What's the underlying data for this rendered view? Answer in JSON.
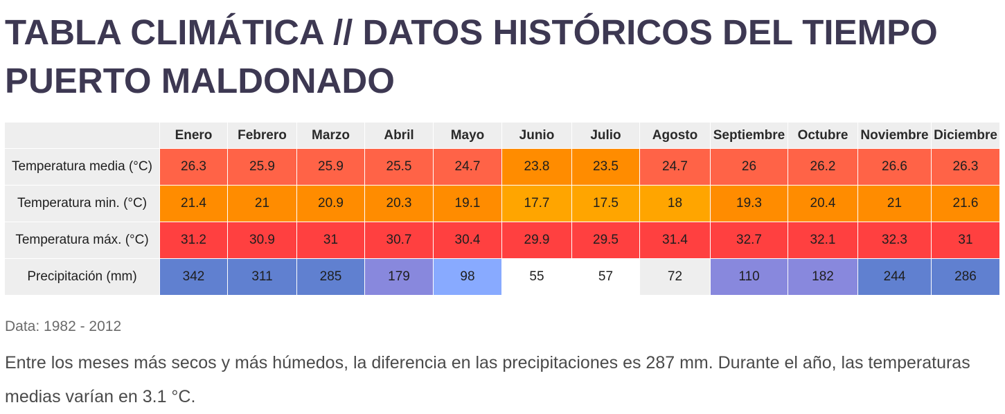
{
  "title": {
    "line1": "TABLA CLIMÁTICA // DATOS HISTÓRICOS DEL TIEMPO",
    "line2": "PUERTO MALDONADO"
  },
  "months": [
    "Enero",
    "Febrero",
    "Marzo",
    "Abril",
    "Mayo",
    "Junio",
    "Julio",
    "Agosto",
    "Septiembre",
    "Octubre",
    "Noviembre",
    "Diciembre"
  ],
  "rows": [
    {
      "label": "Temperatura media (°C)",
      "values": [
        "26.3",
        "25.9",
        "25.9",
        "25.5",
        "24.7",
        "23.8",
        "23.5",
        "24.7",
        "26",
        "26.2",
        "26.6",
        "26.3"
      ],
      "colors": [
        "#ff6347",
        "#ff6347",
        "#ff6347",
        "#ff6347",
        "#ff6347",
        "#ff8c00",
        "#ff8c00",
        "#ff6347",
        "#ff6347",
        "#ff6347",
        "#ff6347",
        "#ff6347"
      ]
    },
    {
      "label": "Temperatura min. (°C)",
      "values": [
        "21.4",
        "21",
        "20.9",
        "20.3",
        "19.1",
        "17.7",
        "17.5",
        "18",
        "19.3",
        "20.4",
        "21",
        "21.6"
      ],
      "colors": [
        "#ff8c00",
        "#ff8c00",
        "#ff8c00",
        "#ff8c00",
        "#ff8c00",
        "#ffa500",
        "#ffa500",
        "#ffa500",
        "#ff8c00",
        "#ff8c00",
        "#ff8c00",
        "#ff8c00"
      ]
    },
    {
      "label": "Temperatura máx. (°C)",
      "values": [
        "31.2",
        "30.9",
        "31",
        "30.7",
        "30.4",
        "29.9",
        "29.5",
        "31.4",
        "32.7",
        "32.1",
        "32.3",
        "31"
      ],
      "colors": [
        "#ff4040",
        "#ff4040",
        "#ff4040",
        "#ff4040",
        "#ff4040",
        "#ff4040",
        "#ff4040",
        "#ff4040",
        "#ff4040",
        "#ff4040",
        "#ff4040",
        "#ff4040"
      ]
    },
    {
      "label": "Precipitación (mm)",
      "values": [
        "342",
        "311",
        "285",
        "179",
        "98",
        "55",
        "57",
        "72",
        "110",
        "182",
        "244",
        "286"
      ],
      "colors": [
        "#6080d0",
        "#6080d0",
        "#6080d0",
        "#8888dd",
        "#88aaff",
        "#ffffff",
        "#ffffff",
        "#eeeeee",
        "#8888dd",
        "#8888dd",
        "#6080d0",
        "#6080d0"
      ]
    }
  ],
  "data_source": "Data: 1982 - 2012",
  "summary": "Entre los meses más secos y más húmedos, la diferencia en las precipitaciones es 287 mm. Durante el año, las temperaturas medias varían en 3.1 °C."
}
